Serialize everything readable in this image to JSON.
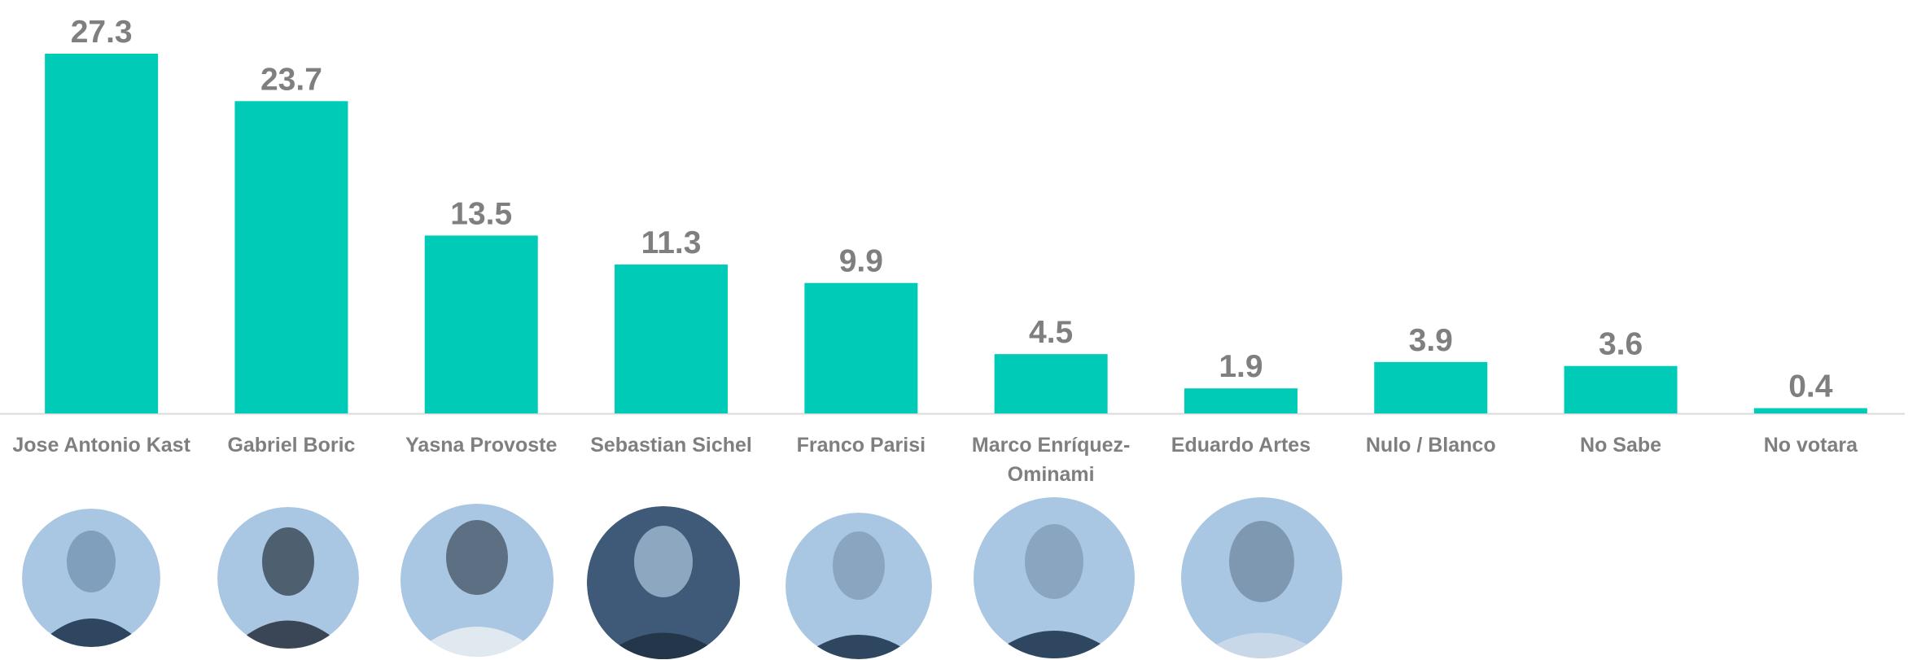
{
  "chart_data": {
    "type": "bar",
    "categories": [
      "Jose Antonio Kast",
      "Gabriel Boric",
      "Yasna Provoste",
      "Sebastian Sichel",
      "Franco Parisi",
      "Marco Enríquez-Ominami",
      "Eduardo Artes",
      "Nulo / Blanco",
      "No Sabe",
      "No votara"
    ],
    "values": [
      27.3,
      23.7,
      13.5,
      11.3,
      9.9,
      4.5,
      1.9,
      3.9,
      3.6,
      0.4
    ],
    "color": "#00cbb6"
  }
}
